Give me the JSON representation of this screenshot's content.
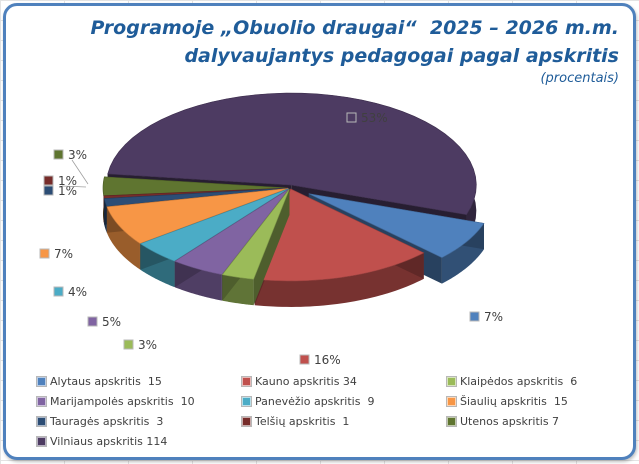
{
  "chart_data": {
    "type": "pie",
    "style": "3d-exploded",
    "title": "Programoje „Obuolio draugai“  2025 – 2026 m.m.",
    "title_line2": "dalyvaujantys pedagogai pagal apskritis",
    "subtitle": "(procentais)",
    "legend_position": "bottom",
    "slices": [
      {
        "name": "Alytaus apskritis",
        "value": 15,
        "pct_label": "7%",
        "legend_label": "Alytaus apskritis  15",
        "color": "#4f81bd"
      },
      {
        "name": "Kauno apskritis",
        "value": 34,
        "pct_label": "16%",
        "legend_label": "Kauno apskritis 34",
        "color": "#c0504d"
      },
      {
        "name": "Klaipėdos apskritis",
        "value": 6,
        "pct_label": "3%",
        "legend_label": "Klaipėdos apskritis  6",
        "color": "#9bbb59"
      },
      {
        "name": "Marijampolės apskritis",
        "value": 10,
        "pct_label": "5%",
        "legend_label": "Marijampolės apskritis  10",
        "color": "#8064a2"
      },
      {
        "name": "Panevėžio apskritis",
        "value": 9,
        "pct_label": "4%",
        "legend_label": "Panevėžio apskritis  9",
        "color": "#4bacc6"
      },
      {
        "name": "Šiaulių apskritis",
        "value": 15,
        "pct_label": "7%",
        "legend_label": "Šiaulių apskritis  15",
        "color": "#f79646"
      },
      {
        "name": "Tauragės apskritis",
        "value": 3,
        "pct_label": "1%",
        "legend_label": "Tauragės apskritis  3",
        "color": "#2c4d75"
      },
      {
        "name": "Telšių apskritis",
        "value": 1,
        "pct_label": "1%",
        "legend_label": "Telšių apskritis  1",
        "color": "#772c2a"
      },
      {
        "name": "Utenos apskritis",
        "value": 7,
        "pct_label": "3%",
        "legend_label": "Utenos apskritis 7",
        "color": "#5f7530"
      },
      {
        "name": "Vilniaus apskritis",
        "value": 114,
        "pct_label": "53%",
        "legend_label": "Vilniaus apskritis 114",
        "color": "#4d3b62"
      }
    ]
  }
}
